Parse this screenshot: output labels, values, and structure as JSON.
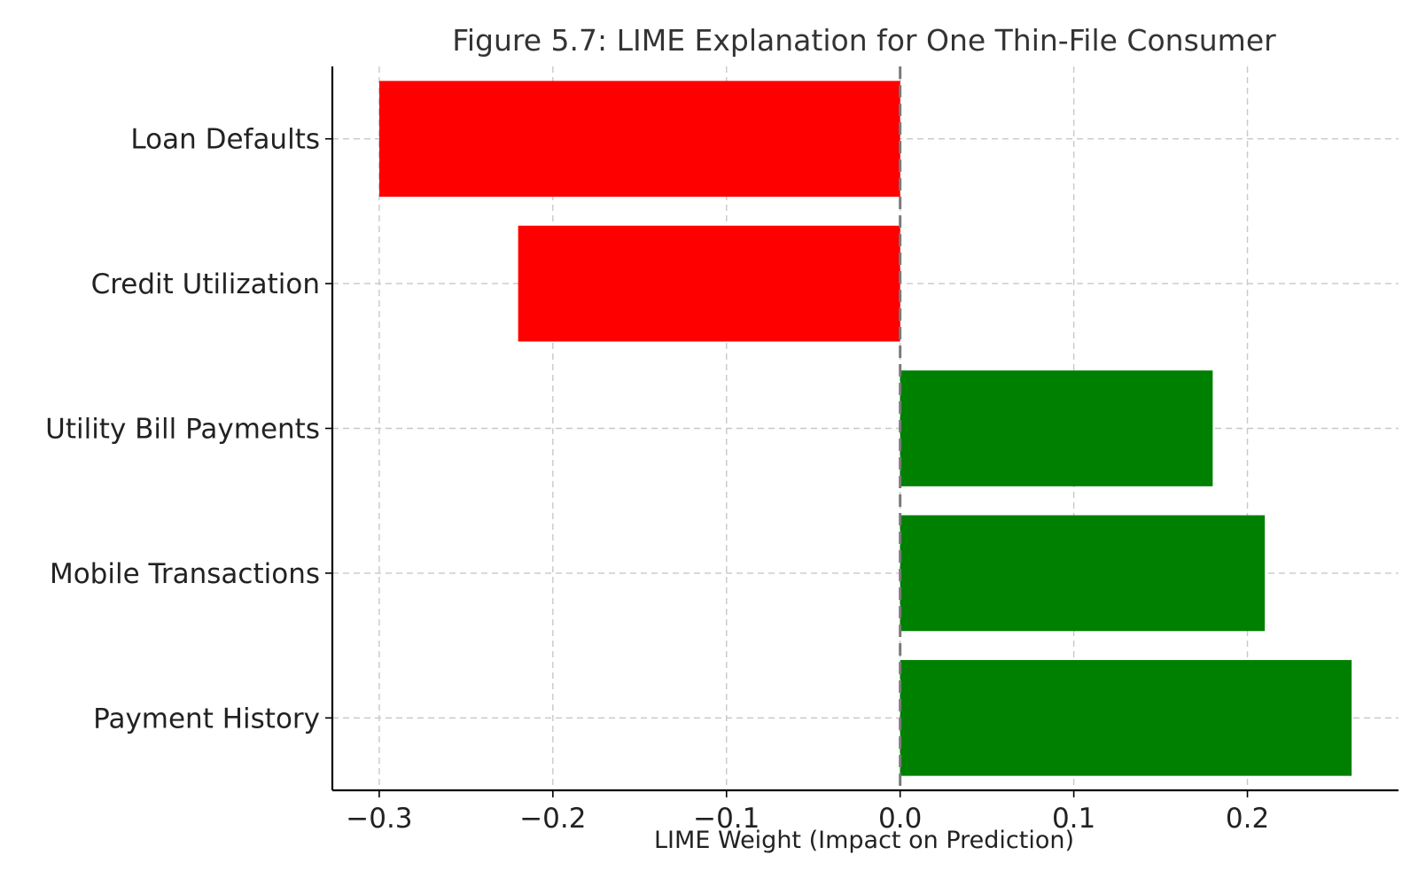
{
  "chart_data": {
    "type": "bar",
    "orientation": "horizontal",
    "title": "Figure 5.7: LIME Explanation for One Thin-File Consumer",
    "xlabel": "LIME Weight (Impact on Prediction)",
    "ylabel": "",
    "categories": [
      "Loan Defaults",
      "Credit Utilization",
      "Utility Bill Payments",
      "Mobile Transactions",
      "Payment History"
    ],
    "values": [
      -0.3,
      -0.22,
      0.18,
      0.21,
      0.26
    ],
    "xlim": [
      -0.327,
      0.287
    ],
    "xticks": [
      -0.3,
      -0.2,
      -0.1,
      0.0,
      0.1,
      0.2
    ],
    "xtick_labels": [
      "−0.3",
      "−0.2",
      "−0.1",
      "0.0",
      "0.1",
      "0.2"
    ],
    "grid": true,
    "reference_line": 0.0,
    "colors": {
      "positive": "#008000",
      "negative": "#ff0000",
      "reference_line": "#7a7a7a",
      "grid": "#c8c8c8"
    }
  }
}
